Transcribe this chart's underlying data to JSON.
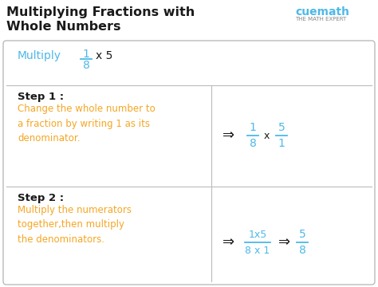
{
  "title_line1": "Multiplying Fractions with",
  "title_line2": "Whole Numbers",
  "bg_color": "#ffffff",
  "blue_color": "#4db8e8",
  "orange_color": "#f5a623",
  "black_color": "#1a1a1a",
  "gray_color": "#888888",
  "border_color": "#bbbbbb",
  "multiply_label": "Multiply",
  "step1_label": "Step 1 :",
  "step1_text": "Change the whole number to\na fraction by writing 1 as its\ndenominator.",
  "step2_label": "Step 2 :",
  "step2_text": "Multiply the numerators\ntogether,then multiply\nthe denominators.",
  "cuemath_text": "cuemath",
  "expert_text": "THE MATH EXPERT"
}
